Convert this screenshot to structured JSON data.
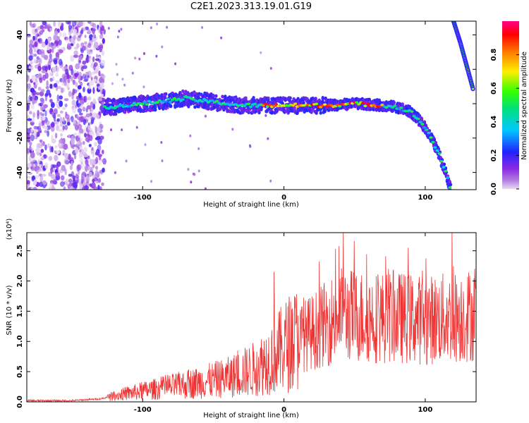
{
  "figure": {
    "title": "C2E1.2023.313.19.01.G19"
  },
  "chart_data": [
    {
      "type": "heatmap",
      "name": "spectrogram",
      "xlabel": "Height of straight line (km)",
      "ylabel": "Frequency (Hz)",
      "xlim": [
        -182,
        136
      ],
      "ylim": [
        -50,
        48
      ],
      "xticks": [
        -100,
        0,
        100
      ],
      "yticks": [
        -40,
        -20,
        0,
        20,
        40
      ],
      "colorbar": {
        "label": "Normalized spectral amplitude",
        "range": [
          0,
          1
        ],
        "ticks": [
          0.0,
          0.2,
          0.4,
          0.6,
          0.8
        ],
        "colormap": "rainbow"
      },
      "noise_region_km": [
        -182,
        -127
      ],
      "ridge": {
        "x": [
          -127,
          -110,
          -90,
          -70,
          -50,
          -30,
          -10,
          10,
          30,
          50,
          70,
          80,
          90,
          95,
          100,
          105,
          110,
          115,
          118
        ],
        "y": [
          -2,
          -1,
          1,
          3,
          1,
          -1,
          -1,
          -1,
          -1,
          0,
          -1,
          -2,
          -5,
          -9,
          -14,
          -21,
          -30,
          -41,
          -50
        ]
      },
      "high_amplitude_km": [
        -15,
        70
      ],
      "upper_trace": {
        "x": [
          120,
          125,
          130,
          134
        ],
        "y": [
          48,
          35,
          20,
          8
        ]
      }
    },
    {
      "type": "line",
      "name": "snr",
      "xlabel": "Height of straight line (km)",
      "ylabel": "SNR (10 * v/v)",
      "scale_label": "(x10⁴)",
      "xlim": [
        -182,
        136
      ],
      "ylim": [
        0,
        2.8
      ],
      "xticks": [
        -100,
        0,
        100
      ],
      "yticks": [
        0.0,
        0.5,
        1.0,
        1.5,
        2.0,
        2.5
      ],
      "color": "#ee3333",
      "envelope": {
        "x": [
          -182,
          -150,
          -130,
          -120,
          -100,
          -80,
          -60,
          -40,
          -20,
          -5,
          5,
          20,
          40,
          60,
          80,
          100,
          120,
          136
        ],
        "y": [
          0.02,
          0.02,
          0.05,
          0.1,
          0.18,
          0.25,
          0.32,
          0.4,
          0.55,
          0.8,
          1.0,
          1.15,
          1.45,
          1.4,
          1.4,
          1.35,
          1.4,
          1.45
        ]
      },
      "peaks": [
        {
          "x": -7,
          "y": 2.15
        },
        {
          "x": 42,
          "y": 2.85
        },
        {
          "x": 119,
          "y": 2.85
        },
        {
          "x": 88,
          "y": 2.55
        },
        {
          "x": 135,
          "y": 2.2
        }
      ]
    }
  ]
}
